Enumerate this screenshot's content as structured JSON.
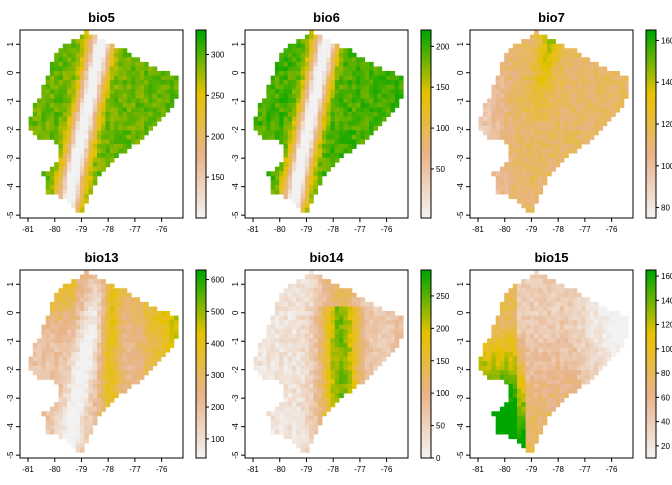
{
  "chart_data": [
    {
      "type": "heatmap",
      "title": "bio5",
      "x_ticks": [
        "-81",
        "-80",
        "-79",
        "-78",
        "-77",
        "-76"
      ],
      "y_ticks": [
        "1",
        "0",
        "-1",
        "-2",
        "-3",
        "-4",
        "-5"
      ],
      "xlim": [
        -81.3,
        -75.2
      ],
      "ylim": [
        -5.1,
        1.5
      ],
      "legend": {
        "position": "right",
        "range": [
          100,
          330
        ],
        "ticks": [
          "300",
          "250",
          "200",
          "150"
        ],
        "tick_values": [
          300,
          250,
          200,
          150
        ]
      },
      "spatial_pattern": "high in lowlands, low along the Andes"
    },
    {
      "type": "heatmap",
      "title": "bio6",
      "x_ticks": [
        "-81",
        "-80",
        "-79",
        "-78",
        "-77",
        "-76"
      ],
      "y_ticks": [
        "1",
        "0",
        "-1",
        "-2",
        "-3",
        "-4",
        "-5"
      ],
      "xlim": [
        -81.3,
        -75.2
      ],
      "ylim": [
        -5.1,
        1.5
      ],
      "legend": {
        "position": "right",
        "range": [
          -10,
          220
        ],
        "ticks": [
          "200",
          "150",
          "100",
          "50"
        ],
        "tick_values": [
          200,
          150,
          100,
          50
        ]
      },
      "spatial_pattern": "high in lowlands, low along the Andes"
    },
    {
      "type": "heatmap",
      "title": "bio7",
      "x_ticks": [
        "-81",
        "-80",
        "-79",
        "-78",
        "-77",
        "-76"
      ],
      "y_ticks": [
        "1",
        "0",
        "-1",
        "-2",
        "-3",
        "-4",
        "-5"
      ],
      "xlim": [
        -81.3,
        -75.2
      ],
      "ylim": [
        -5.1,
        1.5
      ],
      "legend": {
        "position": "right",
        "range": [
          75,
          165
        ],
        "ticks": [
          "160",
          "140",
          "120",
          "100",
          "80"
        ],
        "tick_values": [
          160,
          140,
          120,
          100,
          80
        ]
      },
      "spatial_pattern": "highest along the northern Andes, mid in the east, low on the coast"
    },
    {
      "type": "heatmap",
      "title": "bio13",
      "x_ticks": [
        "-81",
        "-80",
        "-79",
        "-78",
        "-77",
        "-76"
      ],
      "y_ticks": [
        "1",
        "0",
        "-1",
        "-2",
        "-3",
        "-4",
        "-5"
      ],
      "xlim": [
        -81.3,
        -75.2
      ],
      "ylim": [
        -5.1,
        1.5
      ],
      "legend": {
        "position": "right",
        "range": [
          40,
          630
        ],
        "ticks": [
          "600",
          "500",
          "400",
          "300",
          "200",
          "100"
        ],
        "tick_values": [
          600,
          500,
          400,
          300,
          200,
          100
        ]
      },
      "spatial_pattern": "high on the northern coast and Andean slopes, low in the southwest"
    },
    {
      "type": "heatmap",
      "title": "bio14",
      "x_ticks": [
        "-81",
        "-80",
        "-79",
        "-78",
        "-77",
        "-76"
      ],
      "y_ticks": [
        "1",
        "0",
        "-1",
        "-2",
        "-3",
        "-4",
        "-5"
      ],
      "xlim": [
        -81.3,
        -75.2
      ],
      "ylim": [
        -5.1,
        1.5
      ],
      "legend": {
        "position": "right",
        "range": [
          0,
          290
        ],
        "ticks": [
          "250",
          "200",
          "150",
          "100",
          "50",
          "0"
        ],
        "tick_values": [
          250,
          200,
          150,
          100,
          50,
          0
        ]
      },
      "spatial_pattern": "high on the eastern Andean slope, near zero on the coast"
    },
    {
      "type": "heatmap",
      "title": "bio15",
      "x_ticks": [
        "-81",
        "-80",
        "-79",
        "-78",
        "-77",
        "-76"
      ],
      "y_ticks": [
        "1",
        "0",
        "-1",
        "-2",
        "-3",
        "-4",
        "-5"
      ],
      "xlim": [
        -81.3,
        -75.2
      ],
      "ylim": [
        -5.1,
        1.5
      ],
      "legend": {
        "position": "right",
        "range": [
          10,
          165
        ],
        "ticks": [
          "160",
          "140",
          "120",
          "100",
          "80",
          "60",
          "40",
          "20"
        ],
        "tick_values": [
          160,
          140,
          120,
          100,
          80,
          60,
          40,
          20
        ]
      },
      "spatial_pattern": "high on the southern coast, low in the Amazon east"
    }
  ],
  "colors": {
    "low": "#f2f2f2",
    "mid_low": "#e8b48c",
    "mid": "#e6c200",
    "high": "#00a600"
  }
}
